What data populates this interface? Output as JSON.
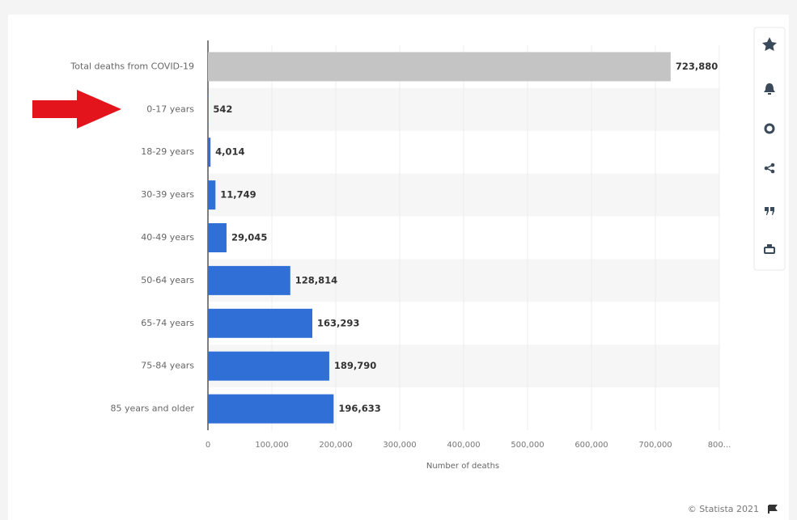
{
  "chart_data": {
    "type": "bar",
    "orientation": "horizontal",
    "x_label": "Number of deaths",
    "source": "© Statista 2021",
    "categories": [
      "Total deaths from COVID-19",
      "0-17 years",
      "18-29 years",
      "30-39 years",
      "40-49 years",
      "50-64 years",
      "65-74 years",
      "75-84 years",
      "85 years and older"
    ],
    "values": [
      723880,
      542,
      4014,
      11749,
      29045,
      128814,
      163293,
      189790,
      196633
    ],
    "value_labels": [
      "723,880",
      "542",
      "4,014",
      "11,749",
      "29,045",
      "128,814",
      "163,293",
      "189,790",
      "196,633"
    ],
    "colors": [
      "#c4c4c4",
      "#2f6fd6",
      "#2f6fd6",
      "#2f6fd6",
      "#2f6fd6",
      "#2f6fd6",
      "#2f6fd6",
      "#2f6fd6",
      "#2f6fd6"
    ],
    "xlim": [
      0,
      800000
    ],
    "xticks": [
      0,
      {
        "value": 100000,
        "label": "100,000"
      },
      {
        "value": 200000,
        "label": "200,000"
      },
      {
        "value": 300000,
        "label": "300,000"
      },
      {
        "value": 400000,
        "label": "400,000"
      },
      {
        "value": 500000,
        "label": "500,000"
      },
      {
        "value": 600000,
        "label": "600,000"
      },
      {
        "value": 700000,
        "label": "700,000"
      },
      {
        "value": 800000,
        "label": "800..."
      }
    ],
    "grid": true
  }
}
